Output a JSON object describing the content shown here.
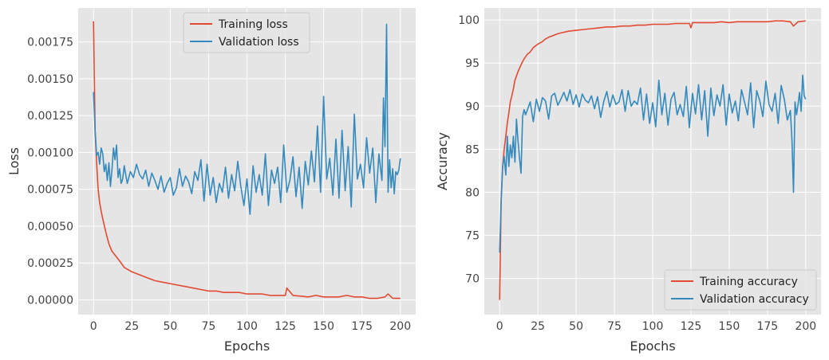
{
  "colors": {
    "background": "#e5e5e5",
    "grid": "#ffffff",
    "training": "#e24a33",
    "validation": "#348abd"
  },
  "chart_data": [
    {
      "type": "line",
      "title": "",
      "xlabel": "Epochs",
      "ylabel": "Loss",
      "xlim": [
        -10,
        210
      ],
      "ylim": [
        -0.0001,
        0.00198
      ],
      "xticks": [
        0,
        25,
        50,
        75,
        100,
        125,
        150,
        175,
        200
      ],
      "xtick_labels": [
        "0",
        "25",
        "50",
        "75",
        "100",
        "125",
        "150",
        "175",
        "200"
      ],
      "yticks": [
        0,
        0.00025,
        0.0005,
        0.00075,
        0.001,
        0.00125,
        0.0015,
        0.00175
      ],
      "ytick_labels": [
        "0.00000",
        "0.00025",
        "0.00050",
        "0.00075",
        "0.00100",
        "0.00125",
        "0.00150",
        "0.00175"
      ],
      "grid": true,
      "legend": "upper center",
      "series": [
        {
          "name": "Training loss",
          "color": "#e24a33",
          "x": [
            0,
            1,
            2,
            3,
            4,
            5,
            6,
            8,
            10,
            12,
            15,
            18,
            20,
            25,
            30,
            35,
            40,
            45,
            50,
            55,
            60,
            65,
            70,
            75,
            80,
            85,
            90,
            95,
            100,
            105,
            110,
            115,
            120,
            125,
            126,
            130,
            140,
            145,
            150,
            160,
            165,
            170,
            175,
            180,
            185,
            190,
            192,
            195,
            200
          ],
          "y": [
            0.00189,
            0.00115,
            0.00093,
            0.00075,
            0.00066,
            0.0006,
            0.00055,
            0.00046,
            0.00038,
            0.00033,
            0.00029,
            0.00025,
            0.00022,
            0.00019,
            0.00017,
            0.00015,
            0.00013,
            0.00012,
            0.00011,
            0.0001,
            9e-05,
            8e-05,
            7e-05,
            6e-05,
            6e-05,
            5e-05,
            5e-05,
            5e-05,
            4e-05,
            4e-05,
            4e-05,
            3e-05,
            3e-05,
            3e-05,
            8e-05,
            3e-05,
            2e-05,
            3e-05,
            2e-05,
            2e-05,
            3e-05,
            2e-05,
            2e-05,
            1e-05,
            1e-05,
            2e-05,
            4e-05,
            1e-05,
            1e-05
          ]
        },
        {
          "name": "Validation loss",
          "color": "#348abd",
          "x": [
            0,
            1,
            2,
            3,
            4,
            5,
            6,
            7,
            8,
            9,
            10,
            11,
            12,
            13,
            14,
            15,
            16,
            17,
            18,
            19,
            20,
            22,
            24,
            26,
            28,
            30,
            32,
            34,
            36,
            38,
            40,
            42,
            44,
            46,
            48,
            50,
            52,
            54,
            56,
            58,
            60,
            62,
            64,
            66,
            68,
            70,
            72,
            74,
            76,
            78,
            80,
            82,
            84,
            86,
            88,
            90,
            92,
            94,
            96,
            98,
            100,
            102,
            104,
            106,
            108,
            110,
            112,
            114,
            116,
            118,
            120,
            122,
            124,
            126,
            128,
            130,
            132,
            134,
            136,
            138,
            140,
            142,
            144,
            146,
            148,
            150,
            152,
            154,
            156,
            158,
            160,
            162,
            164,
            166,
            168,
            170,
            172,
            174,
            176,
            178,
            180,
            182,
            184,
            186,
            188,
            189,
            190,
            191,
            192,
            193,
            194,
            195,
            196,
            197,
            198,
            199,
            200
          ],
          "y": [
            0.00141,
            0.00115,
            0.00098,
            0.001,
            0.00092,
            0.00103,
            0.00099,
            0.00087,
            0.00092,
            0.00081,
            0.00093,
            0.00077,
            0.00088,
            0.00103,
            0.00095,
            0.00105,
            0.00083,
            0.00089,
            0.00079,
            0.00082,
            0.00091,
            0.00079,
            0.00087,
            0.00083,
            0.00092,
            0.00085,
            0.00082,
            0.00088,
            0.00077,
            0.00086,
            0.00081,
            0.00075,
            0.00084,
            0.00073,
            0.00079,
            0.00083,
            0.00071,
            0.00076,
            0.00089,
            0.00077,
            0.00084,
            0.0008,
            0.00072,
            0.00087,
            0.00081,
            0.00095,
            0.00067,
            0.00092,
            0.00071,
            0.00083,
            0.00066,
            0.00079,
            0.00073,
            0.0009,
            0.00069,
            0.00085,
            0.00074,
            0.00094,
            0.00077,
            0.00064,
            0.00082,
            0.00058,
            0.00091,
            0.00073,
            0.00085,
            0.00071,
            0.00099,
            0.00064,
            0.00088,
            0.00079,
            0.0009,
            0.00066,
            0.00105,
            0.00073,
            0.00081,
            0.00097,
            0.0007,
            0.0009,
            0.00062,
            0.00094,
            0.00078,
            0.00101,
            0.0008,
            0.00118,
            0.00073,
            0.00138,
            0.00082,
            0.00096,
            0.00071,
            0.00109,
            0.00069,
            0.00115,
            0.00074,
            0.00104,
            0.00063,
            0.00126,
            0.00082,
            0.00092,
            0.00076,
            0.0011,
            0.00086,
            0.00103,
            0.00066,
            0.00099,
            0.00081,
            0.00137,
            0.00104,
            0.00187,
            0.00073,
            0.00095,
            0.00076,
            0.00089,
            0.00072,
            0.00087,
            0.00085,
            0.00088,
            0.00096
          ]
        }
      ]
    },
    {
      "type": "line",
      "title": "",
      "xlabel": "Epochs",
      "ylabel": "Accuracy",
      "xlim": [
        -10,
        210
      ],
      "ylim": [
        65.8,
        101.4
      ],
      "xticks": [
        0,
        25,
        50,
        75,
        100,
        125,
        150,
        175,
        200
      ],
      "xtick_labels": [
        "0",
        "25",
        "50",
        "75",
        "100",
        "125",
        "150",
        "175",
        "200"
      ],
      "yticks": [
        70,
        75,
        80,
        85,
        90,
        95,
        100
      ],
      "ytick_labels": [
        "70",
        "75",
        "80",
        "85",
        "90",
        "95",
        "100"
      ],
      "grid": true,
      "legend": "lower right",
      "series": [
        {
          "name": "Training accuracy",
          "color": "#e24a33",
          "x": [
            0,
            1,
            2,
            3,
            4,
            5,
            6,
            7,
            8,
            9,
            10,
            12,
            14,
            16,
            18,
            20,
            22,
            25,
            28,
            30,
            32,
            35,
            38,
            40,
            45,
            50,
            55,
            60,
            65,
            70,
            75,
            80,
            85,
            90,
            95,
            100,
            105,
            110,
            115,
            120,
            124,
            125,
            126,
            130,
            135,
            140,
            145,
            150,
            155,
            160,
            165,
            170,
            175,
            180,
            185,
            190,
            192,
            195,
            200
          ],
          "y": [
            67.5,
            79,
            83,
            85,
            86.5,
            88,
            89.2,
            90.5,
            91.2,
            92,
            93,
            94,
            94.8,
            95.5,
            96,
            96.3,
            96.8,
            97.2,
            97.5,
            97.8,
            98,
            98.2,
            98.4,
            98.5,
            98.7,
            98.8,
            98.9,
            99,
            99.1,
            99.2,
            99.2,
            99.3,
            99.3,
            99.4,
            99.4,
            99.5,
            99.5,
            99.5,
            99.6,
            99.6,
            99.6,
            99.1,
            99.7,
            99.7,
            99.7,
            99.7,
            99.8,
            99.7,
            99.8,
            99.8,
            99.8,
            99.8,
            99.8,
            99.9,
            99.9,
            99.8,
            99.3,
            99.8,
            99.9
          ]
        },
        {
          "name": "Validation accuracy",
          "color": "#348abd",
          "x": [
            0,
            1,
            2,
            3,
            4,
            5,
            6,
            7,
            8,
            9,
            10,
            11,
            12,
            13,
            14,
            15,
            16,
            17,
            18,
            20,
            22,
            24,
            26,
            28,
            30,
            32,
            34,
            36,
            38,
            40,
            42,
            44,
            46,
            48,
            50,
            52,
            54,
            56,
            58,
            60,
            62,
            64,
            66,
            68,
            70,
            72,
            74,
            76,
            78,
            80,
            82,
            84,
            86,
            88,
            90,
            92,
            94,
            96,
            98,
            100,
            102,
            104,
            106,
            108,
            110,
            112,
            114,
            116,
            118,
            120,
            122,
            124,
            126,
            128,
            130,
            132,
            134,
            136,
            138,
            140,
            142,
            144,
            146,
            148,
            150,
            152,
            154,
            156,
            158,
            160,
            162,
            164,
            166,
            168,
            170,
            172,
            174,
            176,
            178,
            180,
            182,
            184,
            186,
            188,
            190,
            191,
            192,
            193,
            194,
            195,
            196,
            197,
            198,
            199,
            200
          ],
          "y": [
            73,
            79,
            83,
            84.2,
            82,
            86.5,
            83,
            85.5,
            84,
            86.5,
            83.5,
            88.5,
            86,
            84,
            82.2,
            88.8,
            89.6,
            89,
            89.5,
            90.5,
            88.2,
            90.8,
            89.4,
            91,
            90.6,
            88.5,
            91.2,
            91.5,
            90.1,
            90.8,
            91.6,
            90.6,
            91.9,
            90.2,
            91.3,
            89.9,
            91.4,
            90.7,
            90.4,
            91.2,
            89.7,
            91.1,
            88.7,
            90.5,
            91.7,
            89.9,
            91.3,
            90.2,
            90.5,
            91.9,
            89.4,
            91.8,
            90,
            90.6,
            90.2,
            92.1,
            88.4,
            91.4,
            88,
            90.4,
            87.6,
            93,
            89,
            91.5,
            87.8,
            90.8,
            91.6,
            89,
            90.2,
            88.8,
            92.3,
            87.5,
            91.5,
            89.1,
            92.5,
            88.4,
            91.8,
            86.5,
            92.1,
            88.9,
            91.3,
            90,
            92.5,
            87.8,
            91.4,
            89.2,
            90.6,
            88.3,
            91.9,
            90.5,
            89,
            92.7,
            87.5,
            91.8,
            90.6,
            88.8,
            92.9,
            90.2,
            89.4,
            91.5,
            88,
            92.4,
            90.8,
            88.4,
            89.5,
            86,
            80,
            90.5,
            89,
            90.2,
            91.6,
            89.4,
            93.6,
            91.2,
            90.8
          ]
        }
      ]
    }
  ]
}
